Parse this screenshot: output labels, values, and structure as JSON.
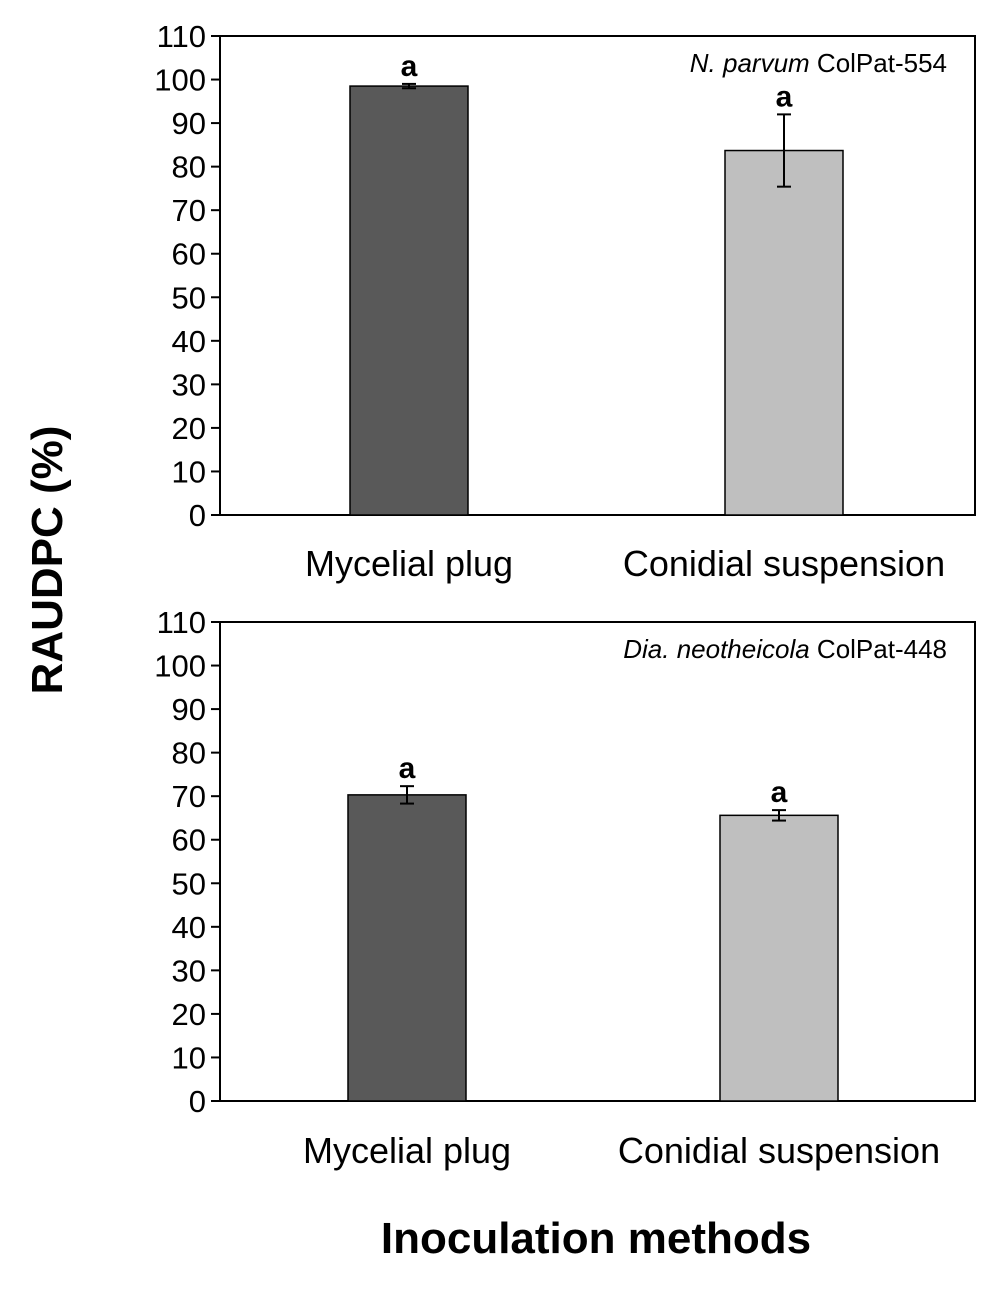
{
  "figure": {
    "ylabel": "RAUDPC (%)",
    "xlabel": "Inoculation methods"
  },
  "colors": {
    "mycelial": "#595959",
    "conidial": "#bfbfbf",
    "axis": "#000000"
  },
  "chart_data": [
    {
      "type": "bar",
      "annotation": {
        "species": "N. parvum",
        "strain": "ColPat-554"
      },
      "categories": [
        "Mycelial plug",
        "Conidial suspension"
      ],
      "values": [
        98.5,
        83.7
      ],
      "errors": [
        0.5,
        8.3
      ],
      "significance": [
        "a",
        "a"
      ],
      "yticks": [
        0,
        10,
        20,
        30,
        40,
        50,
        60,
        70,
        80,
        90,
        100,
        110
      ],
      "ylim": [
        0,
        110
      ],
      "grid": false
    },
    {
      "type": "bar",
      "annotation": {
        "species": "Dia. neotheicola",
        "strain": "ColPat-448"
      },
      "categories": [
        "Mycelial plug",
        "Conidial suspension"
      ],
      "values": [
        70.3,
        65.6
      ],
      "errors": [
        2.0,
        1.2
      ],
      "significance": [
        "a",
        "a"
      ],
      "yticks": [
        0,
        10,
        20,
        30,
        40,
        50,
        60,
        70,
        80,
        90,
        100,
        110
      ],
      "ylim": [
        0,
        110
      ],
      "grid": false
    }
  ]
}
